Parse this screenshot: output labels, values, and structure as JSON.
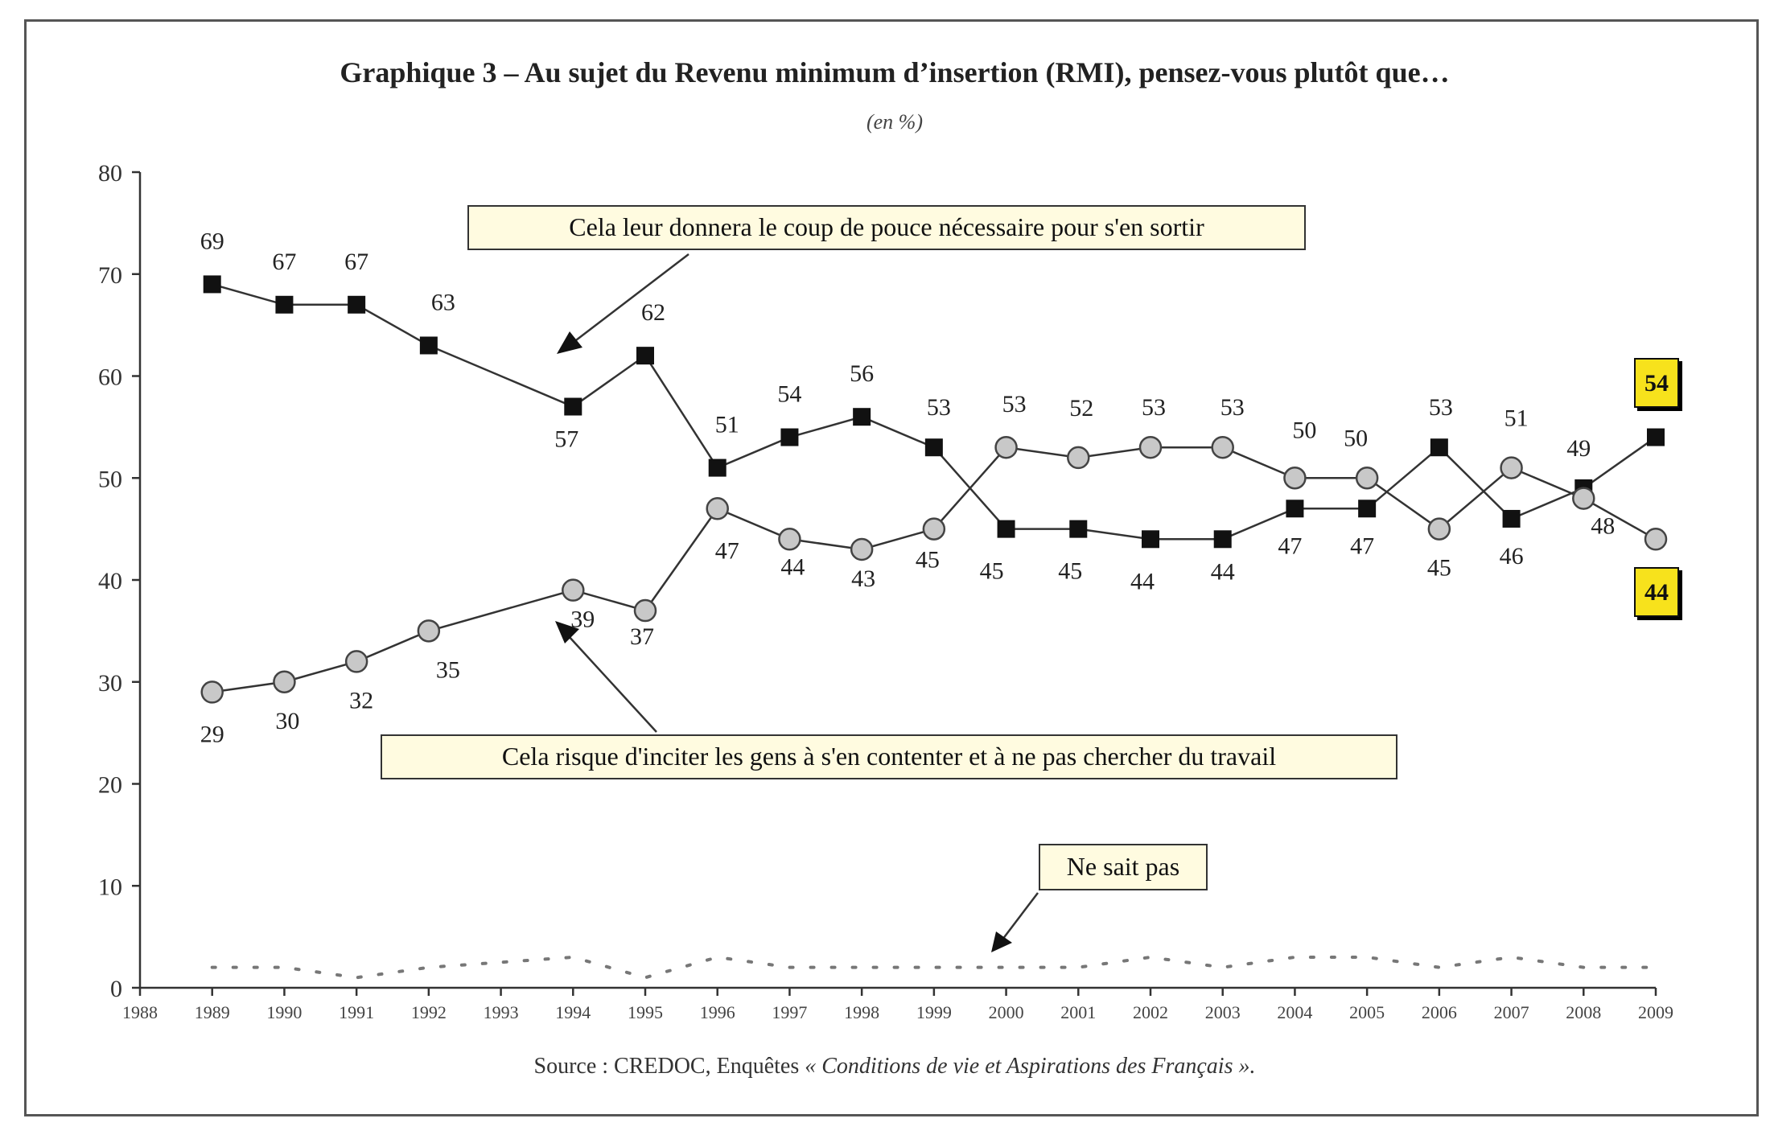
{
  "chart_data": {
    "type": "line",
    "title": "Graphique 3 – Au sujet du Revenu minimum d’insertion (RMI), pensez-vous plutôt que…",
    "subtitle": "(en %)",
    "source_prefix": "Source : CREDOC, Enquêtes ",
    "source_italic": "« Conditions de vie et Aspirations des Français ».",
    "x_ticks": [
      "1988",
      "1989",
      "1990",
      "1991",
      "1992",
      "1993",
      "1994",
      "1995",
      "1996",
      "1997",
      "1998",
      "1999",
      "2000",
      "2001",
      "2002",
      "2003",
      "2004",
      "2005",
      "2006",
      "2007",
      "2008",
      "2009"
    ],
    "xlim": [
      1988,
      2009
    ],
    "y_ticks": [
      "0",
      "10",
      "20",
      "30",
      "40",
      "50",
      "60",
      "70",
      "80"
    ],
    "ylim": [
      0,
      80
    ],
    "series": [
      {
        "name": "Cela leur donnera le coup de pouce nécessaire pour s'en sortir",
        "marker": "square",
        "color": "#111111",
        "x": [
          1989,
          1990,
          1991,
          1992,
          1994,
          1995,
          1996,
          1997,
          1998,
          1999,
          2000,
          2001,
          2002,
          2003,
          2004,
          2005,
          2006,
          2007,
          2008,
          2009
        ],
        "values": [
          69,
          67,
          67,
          63,
          57,
          62,
          51,
          54,
          56,
          53,
          45,
          45,
          44,
          44,
          47,
          47,
          53,
          46,
          49,
          54
        ]
      },
      {
        "name": "Cela risque d'inciter les gens à s'en contenter et à ne pas chercher du travail",
        "marker": "circle",
        "color": "#c8c8c8",
        "x": [
          1989,
          1990,
          1991,
          1992,
          1994,
          1995,
          1996,
          1997,
          1998,
          1999,
          2000,
          2001,
          2002,
          2003,
          2004,
          2005,
          2006,
          2007,
          2008,
          2009
        ],
        "values": [
          29,
          30,
          32,
          35,
          39,
          37,
          47,
          44,
          43,
          45,
          53,
          52,
          53,
          53,
          50,
          50,
          45,
          51,
          48,
          44
        ]
      },
      {
        "name": "Ne sait pas",
        "marker": "none",
        "style": "dotted",
        "color": "#777777",
        "x": [
          1989,
          1990,
          1991,
          1992,
          1994,
          1995,
          1996,
          1997,
          1998,
          1999,
          2000,
          2001,
          2002,
          2003,
          2004,
          2005,
          2006,
          2007,
          2008,
          2009
        ],
        "values": [
          2,
          2,
          1,
          2,
          3,
          1,
          3,
          2,
          2,
          2,
          2,
          2,
          3,
          2,
          3,
          3,
          2,
          3,
          2,
          2
        ]
      }
    ],
    "end_labels": [
      "54",
      "44"
    ],
    "label_box_color": "#fffbe0",
    "end_box_color": "#f7e21c"
  }
}
